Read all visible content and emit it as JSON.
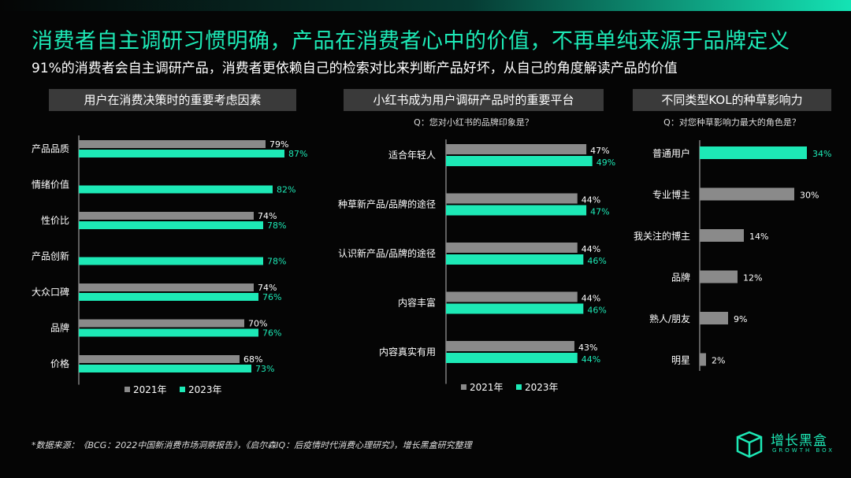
{
  "header": {
    "title": "消费者自主调研习惯明确，产品在消费者心中的价值，不再单纯来源于品牌定义",
    "subtitle": "91%的消费者会自主调研产品，消费者更依赖自己的检索对比来判断产品好坏，从自己的角度解读产品的价值"
  },
  "colors": {
    "y2021": "#8a8a8a",
    "y2023": "#1de9b6",
    "background": "#050505",
    "panel_head": "#3a3a3a"
  },
  "chart_data": [
    {
      "type": "bar",
      "orientation": "horizontal",
      "title": "用户在消费决策时的重要考虑因素",
      "categories": [
        "产品品质",
        "情绪价值",
        "性价比",
        "产品创新",
        "大众口碑",
        "品牌",
        "价格"
      ],
      "series": [
        {
          "name": "2021年",
          "values": [
            79,
            null,
            74,
            null,
            74,
            70,
            68
          ],
          "labels": [
            "79%",
            "",
            "74%",
            "",
            "74%",
            "70%",
            "68%"
          ]
        },
        {
          "name": "2023年",
          "values": [
            87,
            82,
            78,
            78,
            76,
            76,
            73
          ],
          "labels": [
            "87%",
            "82%",
            "78%",
            "78%",
            "76%",
            "76%",
            "73%"
          ]
        }
      ],
      "legend": "bottom"
    },
    {
      "type": "bar",
      "orientation": "horizontal",
      "title": "小红书成为用户调研产品时的重要平台",
      "question": "Q：您对小红书的品牌印象是？",
      "categories": [
        "适合年轻人",
        "种草新产品/品牌的途径",
        "认识新产品/品牌的途径",
        "内容丰富",
        "内容真实有用"
      ],
      "series": [
        {
          "name": "2021年",
          "values": [
            47,
            44,
            44,
            44,
            43
          ],
          "labels": [
            "47%",
            "44%",
            "44%",
            "44%",
            "43%"
          ]
        },
        {
          "name": "2023年",
          "values": [
            49,
            47,
            46,
            46,
            44
          ],
          "labels": [
            "49%",
            "47%",
            "46%",
            "46%",
            "44%"
          ]
        }
      ],
      "legend": "bottom"
    },
    {
      "type": "bar",
      "orientation": "horizontal",
      "title": "不同类型KOL的种草影响力",
      "question": "Q：对您种草影响力最大的角色是？",
      "categories": [
        "普通用户",
        "专业博主",
        "我关注的博主",
        "品牌",
        "熟人/朋友",
        "明星"
      ],
      "values": [
        34,
        30,
        14,
        12,
        9,
        2
      ],
      "labels": [
        "34%",
        "30%",
        "14%",
        "12%",
        "9%",
        "2%"
      ],
      "highlight_index": 0
    }
  ],
  "footer": {
    "source": "*数据来源：《BCG：2022中国新消费市场洞察报告》，《启尔森IQ：后疫情时代消费心理研究》，增长黑盒研究整理"
  },
  "logo": {
    "name": "增长黑盒",
    "tagline": "GROWTH BOX"
  },
  "icons": {
    "logo": "cube-logo-icon"
  }
}
